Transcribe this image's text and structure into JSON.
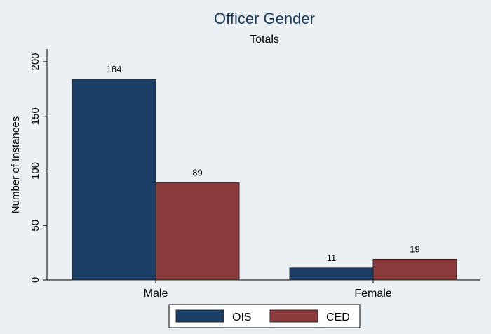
{
  "chart_data": {
    "type": "bar",
    "title": "Officer Gender",
    "subtitle": "Totals",
    "categories": [
      "Male",
      "Female"
    ],
    "series": [
      {
        "name": "OIS",
        "values": [
          184,
          11
        ],
        "color": "#1b3f66"
      },
      {
        "name": "CED",
        "values": [
          89,
          19
        ],
        "color": "#8a3a3b"
      }
    ],
    "ylabel": "Number of Instances",
    "xlabel": "",
    "ylim": [
      0,
      200
    ],
    "yticks": [
      0,
      50,
      100,
      150,
      200
    ],
    "grid": false,
    "legend_position": "bottom"
  }
}
